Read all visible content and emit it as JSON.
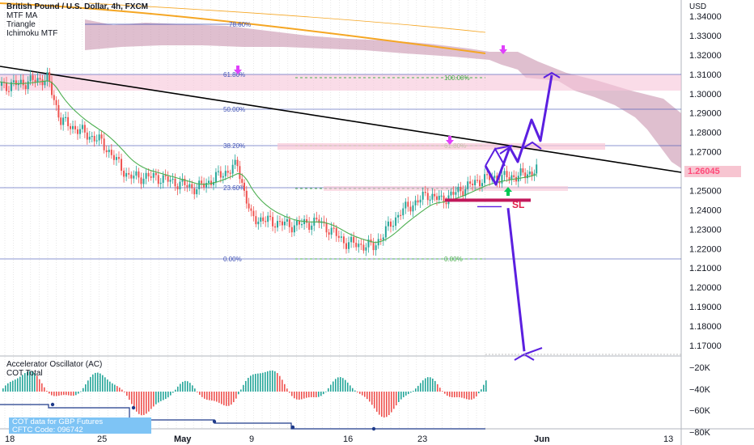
{
  "legend": {
    "symbol": "British Pound / U.S. Dollar, 4h, FXCM",
    "indicators": [
      "MTF MA",
      "Triangle",
      "Ichimoku MTF"
    ]
  },
  "oscillator_legend": {
    "lines": [
      "Accelerator Oscillator (AC)",
      "COT Total"
    ]
  },
  "cot_box": {
    "line1": "COT data for GBP Futures",
    "line2": "CFTC Code: 096742"
  },
  "axis": {
    "currency": "USD",
    "current_price": "1.26045",
    "price_ticks": [
      "1.34000",
      "1.33000",
      "1.32000",
      "1.31000",
      "1.30000",
      "1.29000",
      "1.28000",
      "1.27000",
      "1.26000",
      "1.25000",
      "1.24000",
      "1.23000",
      "1.22000",
      "1.21000",
      "1.20000",
      "1.19000",
      "1.18000",
      "1.17000"
    ],
    "osc_ticks": [
      "−20K",
      "−40K",
      "−60K",
      "−80K"
    ],
    "time_ticks": [
      "18",
      "25",
      "May",
      "9",
      "16",
      "23",
      "Jun",
      "13"
    ]
  },
  "annotations": {
    "sl_label": "SL"
  },
  "fib_left_labels": [
    "61.80%",
    "50.00%",
    "38.20%",
    "23.60%",
    "0.00%"
  ],
  "fib_right_labels": [
    "100.00%",
    "61.80%",
    "0.00%"
  ],
  "fib_upper_label": "78.60%",
  "colors": {
    "bull": "#26a69a",
    "bear": "#ef5350",
    "cloud": "#c58ba7",
    "fib_left": "#3f51b5",
    "fib_right": "#4caf50",
    "arrow": "#5b1fe0",
    "trendline": "#000000"
  },
  "chart_data": {
    "type": "candlestick",
    "instrument": "British Pound / U.S. Dollar",
    "timeframe": "4h",
    "last_price": 1.26045,
    "y_range": [
      1.163,
      1.343
    ],
    "close_path": [
      {
        "date": "2022-04-15",
        "close": 1.308
      },
      {
        "date": "2022-04-18",
        "close": 1.304
      },
      {
        "date": "2022-04-21",
        "close": 1.308
      },
      {
        "date": "2022-04-22",
        "close": 1.286
      },
      {
        "date": "2022-04-25",
        "close": 1.275
      },
      {
        "date": "2022-04-27",
        "close": 1.257
      },
      {
        "date": "2022-04-29",
        "close": 1.257
      },
      {
        "date": "2022-05-02",
        "close": 1.251
      },
      {
        "date": "2022-05-05",
        "close": 1.263
      },
      {
        "date": "2022-05-06",
        "close": 1.236
      },
      {
        "date": "2022-05-09",
        "close": 1.232
      },
      {
        "date": "2022-05-11",
        "close": 1.234
      },
      {
        "date": "2022-05-13",
        "close": 1.223
      },
      {
        "date": "2022-05-15",
        "close": 1.221
      },
      {
        "date": "2022-05-17",
        "close": 1.239
      },
      {
        "date": "2022-05-19",
        "close": 1.248
      },
      {
        "date": "2022-05-20",
        "close": 1.245
      },
      {
        "date": "2022-05-23",
        "close": 1.256
      },
      {
        "date": "2022-05-25",
        "close": 1.257
      },
      {
        "date": "2022-05-26",
        "close": 1.258
      },
      {
        "date": "2022-05-27",
        "close": 1.26045
      }
    ],
    "projection": [
      {
        "date": "2022-05-27",
        "price": 1.26045
      },
      {
        "date": "2022-05-28",
        "price": 1.253
      },
      {
        "date": "2022-05-29",
        "price": 1.272
      },
      {
        "date": "2022-05-31",
        "price": 1.284
      },
      {
        "date": "2022-06-02",
        "price": 1.31
      }
    ],
    "downside_projection": [
      {
        "date": "2022-05-29",
        "price": 1.243
      },
      {
        "date": "2022-05-30",
        "price": 1.167
      }
    ],
    "stop_loss": 1.245
  }
}
